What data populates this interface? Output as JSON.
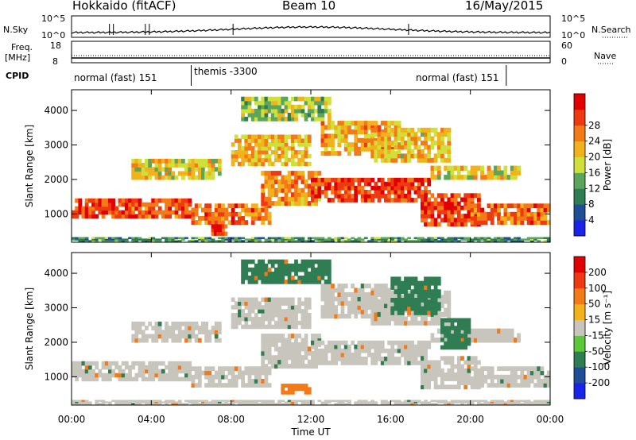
{
  "header": {
    "station": "Hokkaido (fitACF)",
    "beam": "Beam 10",
    "date": "16/May/2015"
  },
  "side_labels": {
    "nsky": "N.Sky",
    "nsky_ticks": [
      "10^5",
      "10^0"
    ],
    "nsearch": "N.Search",
    "nsearch_ticks": [
      "10^5",
      "10^0"
    ],
    "freq": "Freq.",
    "freq_unit": "[MHz]",
    "freq_ticks": [
      "18",
      "8"
    ],
    "nave": "Nave",
    "nave_ticks": [
      "60",
      "0"
    ],
    "cpid": "CPID"
  },
  "cpid_segments": [
    {
      "label": "normal (fast) 151",
      "start_h": 0.0,
      "end_h": 6.0
    },
    {
      "label": "themis -3300",
      "start_h": 6.0,
      "end_h": 21.8
    },
    {
      "label": "normal (fast) 151",
      "start_h": 21.8,
      "end_h": 24.0
    }
  ],
  "chart_data": [
    {
      "type": "heatmap",
      "name": "power",
      "xlabel": "Time UT",
      "ylabel": "Slant Range [km]",
      "xlim": [
        0,
        24
      ],
      "ylim": [
        180,
        4600
      ],
      "x_ticks": [
        "00:00",
        "04:00",
        "08:00",
        "12:00",
        "16:00",
        "20:00",
        "00:00"
      ],
      "y_ticks": [
        1000,
        2000,
        3000,
        4000
      ],
      "colorbar": {
        "label": "Power [dB]",
        "ticks": [
          "4",
          "8",
          "12",
          "16",
          "20",
          "24",
          "28"
        ],
        "colors": [
          "#1a23e8",
          "#1f4e96",
          "#2f7d52",
          "#5ba65a",
          "#cfe03a",
          "#f2b21c",
          "#f47a18",
          "#ee3a10",
          "#e00000"
        ]
      },
      "bands": [
        {
          "t": [
            0.0,
            6.0
          ],
          "r": [
            880,
            1450
          ],
          "level": 0.85
        },
        {
          "t": [
            6.0,
            10.0
          ],
          "r": [
            700,
            1300
          ],
          "level": 0.78
        },
        {
          "t": [
            7.0,
            7.8
          ],
          "r": [
            380,
            700
          ],
          "level": 0.9
        },
        {
          "t": [
            9.5,
            12.5
          ],
          "r": [
            1250,
            2250
          ],
          "level": 0.72
        },
        {
          "t": [
            12.0,
            18.0
          ],
          "r": [
            1350,
            2050
          ],
          "level": 0.88
        },
        {
          "t": [
            17.5,
            20.5
          ],
          "r": [
            650,
            1600
          ],
          "level": 0.86
        },
        {
          "t": [
            20.0,
            24.0
          ],
          "r": [
            700,
            1300
          ],
          "level": 0.8
        },
        {
          "t": [
            3.0,
            7.5
          ],
          "r": [
            2000,
            2600
          ],
          "level": 0.55
        },
        {
          "t": [
            8.0,
            12.0
          ],
          "r": [
            2400,
            3300
          ],
          "level": 0.62
        },
        {
          "t": [
            12.5,
            16.5
          ],
          "r": [
            2700,
            3700
          ],
          "level": 0.66
        },
        {
          "t": [
            15.0,
            19.0
          ],
          "r": [
            2500,
            3500
          ],
          "level": 0.6
        },
        {
          "t": [
            18.0,
            22.5
          ],
          "r": [
            2000,
            2400
          ],
          "level": 0.55
        },
        {
          "t": [
            8.5,
            13.0
          ],
          "r": [
            3700,
            4400
          ],
          "level": 0.45
        },
        {
          "t": [
            0.0,
            24.0
          ],
          "r": [
            200,
            330
          ],
          "level": 0.3
        }
      ]
    },
    {
      "type": "heatmap",
      "name": "velocity",
      "xlabel": "Time UT",
      "ylabel": "Slant Range [km]",
      "xlim": [
        0,
        24
      ],
      "ylim": [
        180,
        4600
      ],
      "x_ticks": [
        "00:00",
        "04:00",
        "08:00",
        "12:00",
        "16:00",
        "20:00",
        "00:00"
      ],
      "y_ticks": [
        1000,
        2000,
        3000,
        4000
      ],
      "colorbar": {
        "label": "Velocity [m s⁻¹]",
        "ticks": [
          "200",
          "100",
          "50",
          "15",
          "-15",
          "-50",
          "-100",
          "-200"
        ],
        "colors": [
          "#1a23e8",
          "#1f4e96",
          "#2f7d52",
          "#5cc83a",
          "#c8c6bc",
          "#f2b21c",
          "#f47a18",
          "#ee3a10",
          "#e00000"
        ]
      },
      "bands": [
        {
          "t": [
            0.0,
            6.0
          ],
          "r": [
            880,
            1450
          ],
          "level": 0.5
        },
        {
          "t": [
            6.0,
            10.0
          ],
          "r": [
            700,
            1300
          ],
          "level": 0.5
        },
        {
          "t": [
            9.5,
            12.5
          ],
          "r": [
            1250,
            2250
          ],
          "level": 0.5
        },
        {
          "t": [
            12.0,
            18.0
          ],
          "r": [
            1350,
            2050
          ],
          "level": 0.5
        },
        {
          "t": [
            17.5,
            20.5
          ],
          "r": [
            650,
            1600
          ],
          "level": 0.5
        },
        {
          "t": [
            20.0,
            24.0
          ],
          "r": [
            700,
            1300
          ],
          "level": 0.5
        },
        {
          "t": [
            3.0,
            7.5
          ],
          "r": [
            2000,
            2600
          ],
          "level": 0.5
        },
        {
          "t": [
            8.0,
            12.0
          ],
          "r": [
            2400,
            3300
          ],
          "level": 0.5
        },
        {
          "t": [
            12.5,
            16.5
          ],
          "r": [
            2700,
            3700
          ],
          "level": 0.5
        },
        {
          "t": [
            15.0,
            19.0
          ],
          "r": [
            2500,
            3500
          ],
          "level": 0.5
        },
        {
          "t": [
            18.0,
            22.5
          ],
          "r": [
            2000,
            2400
          ],
          "level": 0.5
        },
        {
          "t": [
            16.0,
            18.5
          ],
          "r": [
            2800,
            3900
          ],
          "level": 0.2
        },
        {
          "t": [
            18.5,
            20.0
          ],
          "r": [
            1800,
            2700
          ],
          "level": 0.2
        },
        {
          "t": [
            10.5,
            12.0
          ],
          "r": [
            500,
            800
          ],
          "level": 0.75
        },
        {
          "t": [
            8.5,
            13.0
          ],
          "r": [
            3700,
            4400
          ],
          "level": 0.3
        },
        {
          "t": [
            0.0,
            24.0
          ],
          "r": [
            200,
            330
          ],
          "level": 0.55
        }
      ]
    }
  ]
}
